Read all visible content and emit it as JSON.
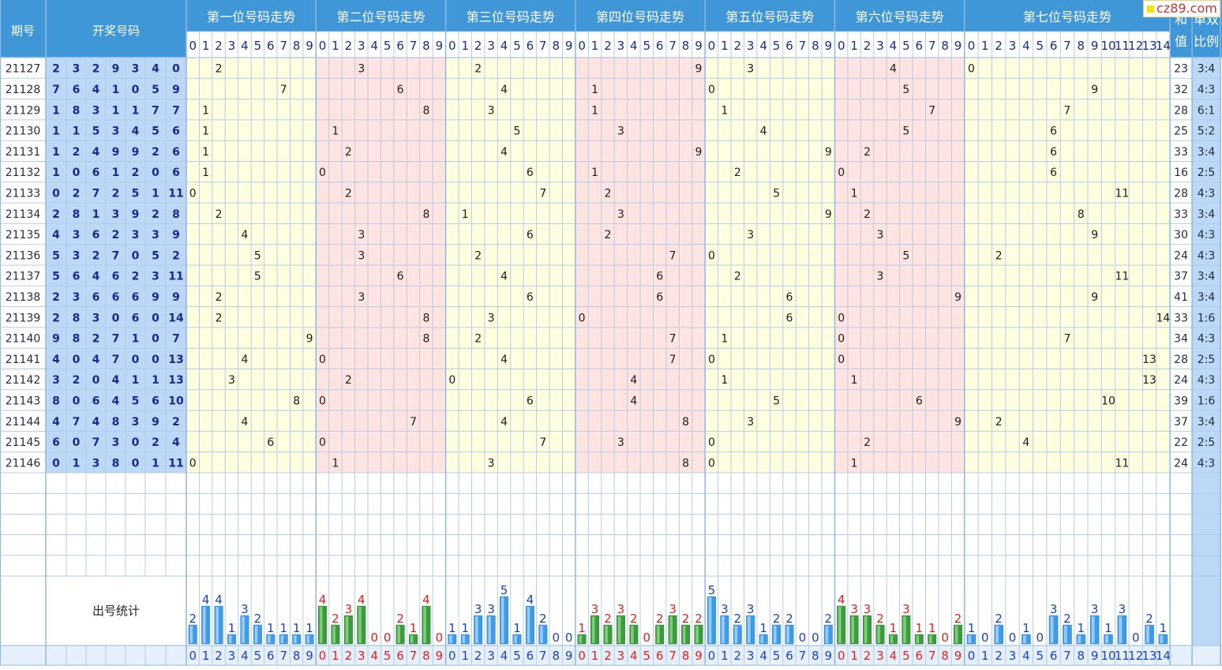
{
  "header": {
    "period": "期号",
    "draw": "开奖号码",
    "positions": [
      "第一位号码走势",
      "第二位号码走势",
      "第三位号码走势",
      "第四位号码走势",
      "第五位号码走势",
      "第六位号码走势",
      "第七位号码走势"
    ],
    "sum_line1": "和",
    "sum_line2": "值",
    "ratio_line1": "单双",
    "ratio_line2": "比例"
  },
  "stats_label": "出号统计",
  "watermark": "cz89.com",
  "colors": {
    "header_bg": "#3f97d8",
    "draw_bg": "#bcd8f6",
    "zone_yellow": "#ffffe0",
    "zone_pink": "#ffe4e1",
    "grid": "#b4cde5",
    "bar_blue": "#3d9be8",
    "bar_green": "#3a9c3a",
    "count_red": "#e02020",
    "count_blue": "#1a3fc8",
    "digit_text": "#1a2a88"
  },
  "chart_data": {
    "type": "table",
    "position_digit_ranges": [
      [
        0,
        9
      ],
      [
        0,
        9
      ],
      [
        0,
        9
      ],
      [
        0,
        9
      ],
      [
        0,
        9
      ],
      [
        0,
        9
      ],
      [
        0,
        14
      ]
    ],
    "draws": [
      {
        "period": "21127",
        "numbers": [
          2,
          3,
          2,
          9,
          3,
          4,
          0
        ],
        "sum": 23,
        "ratio": "3:4"
      },
      {
        "period": "21128",
        "numbers": [
          7,
          6,
          4,
          1,
          0,
          5,
          9
        ],
        "sum": 32,
        "ratio": "4:3"
      },
      {
        "period": "21129",
        "numbers": [
          1,
          8,
          3,
          1,
          1,
          7,
          7
        ],
        "sum": 28,
        "ratio": "6:1"
      },
      {
        "period": "21130",
        "numbers": [
          1,
          1,
          5,
          3,
          4,
          5,
          6
        ],
        "sum": 25,
        "ratio": "5:2"
      },
      {
        "period": "21131",
        "numbers": [
          1,
          2,
          4,
          9,
          9,
          2,
          6
        ],
        "sum": 33,
        "ratio": "3:4"
      },
      {
        "period": "21132",
        "numbers": [
          1,
          0,
          6,
          1,
          2,
          0,
          6
        ],
        "sum": 16,
        "ratio": "2:5"
      },
      {
        "period": "21133",
        "numbers": [
          0,
          2,
          7,
          2,
          5,
          1,
          11
        ],
        "sum": 28,
        "ratio": "4:3"
      },
      {
        "period": "21134",
        "numbers": [
          2,
          8,
          1,
          3,
          9,
          2,
          8
        ],
        "sum": 33,
        "ratio": "3:4"
      },
      {
        "period": "21135",
        "numbers": [
          4,
          3,
          6,
          2,
          3,
          3,
          9
        ],
        "sum": 30,
        "ratio": "4:3"
      },
      {
        "period": "21136",
        "numbers": [
          5,
          3,
          2,
          7,
          0,
          5,
          2
        ],
        "sum": 24,
        "ratio": "4:3"
      },
      {
        "period": "21137",
        "numbers": [
          5,
          6,
          4,
          6,
          2,
          3,
          11
        ],
        "sum": 37,
        "ratio": "3:4"
      },
      {
        "period": "21138",
        "numbers": [
          2,
          3,
          6,
          6,
          6,
          9,
          9
        ],
        "sum": 41,
        "ratio": "3:4"
      },
      {
        "period": "21139",
        "numbers": [
          2,
          8,
          3,
          0,
          6,
          0,
          14
        ],
        "sum": 33,
        "ratio": "1:6"
      },
      {
        "period": "21140",
        "numbers": [
          9,
          8,
          2,
          7,
          1,
          0,
          7
        ],
        "sum": 34,
        "ratio": "4:3"
      },
      {
        "period": "21141",
        "numbers": [
          4,
          0,
          4,
          7,
          0,
          0,
          13
        ],
        "sum": 28,
        "ratio": "2:5"
      },
      {
        "period": "21142",
        "numbers": [
          3,
          2,
          0,
          4,
          1,
          1,
          13
        ],
        "sum": 24,
        "ratio": "4:3"
      },
      {
        "period": "21143",
        "numbers": [
          8,
          0,
          6,
          4,
          5,
          6,
          10
        ],
        "sum": 39,
        "ratio": "1:6"
      },
      {
        "period": "21144",
        "numbers": [
          4,
          7,
          4,
          8,
          3,
          9,
          2
        ],
        "sum": 37,
        "ratio": "3:4"
      },
      {
        "period": "21145",
        "numbers": [
          6,
          0,
          7,
          3,
          0,
          2,
          4
        ],
        "sum": 22,
        "ratio": "2:5"
      },
      {
        "period": "21146",
        "numbers": [
          0,
          1,
          3,
          8,
          0,
          1,
          11
        ],
        "sum": 24,
        "ratio": "4:3"
      }
    ],
    "digit_counts": [
      [
        2,
        4,
        4,
        1,
        3,
        2,
        1,
        1,
        1,
        1
      ],
      [
        4,
        2,
        3,
        4,
        0,
        0,
        2,
        1,
        4,
        0
      ],
      [
        1,
        1,
        3,
        3,
        5,
        1,
        4,
        2,
        0,
        0
      ],
      [
        1,
        3,
        2,
        3,
        2,
        0,
        2,
        3,
        2,
        2
      ],
      [
        5,
        3,
        2,
        3,
        1,
        2,
        2,
        0,
        0,
        2
      ],
      [
        4,
        3,
        3,
        2,
        1,
        3,
        1,
        1,
        0,
        2
      ],
      [
        1,
        0,
        2,
        0,
        1,
        0,
        3,
        2,
        1,
        3,
        1,
        3,
        0,
        2,
        1
      ]
    ]
  }
}
